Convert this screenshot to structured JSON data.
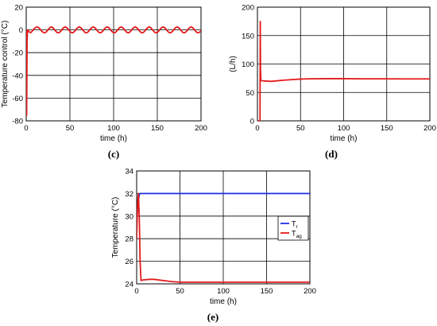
{
  "colors": {
    "red": "#e31a1c",
    "blue": "#1f2fe0",
    "axis": "#000000",
    "grid": "#000000",
    "background": "#ffffff"
  },
  "chart_data": [
    {
      "panel": "(c)",
      "type": "line",
      "xlabel": "time (h)",
      "ylabel": "Temperature control (°C)",
      "xlim": [
        0,
        200
      ],
      "ylim": [
        -80,
        20
      ],
      "xticks": [
        0,
        50,
        100,
        150,
        200
      ],
      "yticks": [
        -80,
        -60,
        -40,
        -20,
        0,
        20
      ],
      "grid": true,
      "series": [
        {
          "color": "red",
          "x": [
            0,
            0.5,
            1,
            1.5,
            2,
            3,
            5,
            7,
            9,
            11,
            13,
            15,
            17,
            19,
            21,
            23,
            25,
            27,
            29,
            31,
            33,
            35,
            37,
            39,
            41,
            43,
            45,
            47,
            49,
            51,
            53,
            55,
            57,
            59,
            61,
            63,
            65,
            67,
            69,
            71,
            73,
            75,
            77,
            79,
            81,
            83,
            85,
            87,
            89,
            91,
            93,
            95,
            97,
            99,
            101,
            103,
            105,
            107,
            109,
            111,
            113,
            115,
            117,
            119,
            121,
            123,
            125,
            127,
            129,
            131,
            133,
            135,
            137,
            139,
            141,
            143,
            145,
            147,
            149,
            151,
            153,
            155,
            157,
            159,
            161,
            163,
            165,
            167,
            169,
            171,
            173,
            175,
            177,
            179,
            181,
            183,
            185,
            187,
            189,
            191,
            193,
            195,
            197,
            199,
            200
          ],
          "y": [
            0,
            -75,
            -10,
            -1,
            0,
            -1.5,
            -2.5,
            -1,
            1,
            2.3,
            2.5,
            1.5,
            -0.5,
            -2,
            -2.6,
            -1.8,
            0.2,
            2,
            2.6,
            1.6,
            -0.4,
            -2.1,
            -2.6,
            -1.6,
            0.4,
            2.1,
            2.6,
            1.6,
            -0.4,
            -2.1,
            -2.6,
            -1.6,
            0.4,
            2.1,
            2.6,
            1.6,
            -0.4,
            -2.1,
            -2.6,
            -1.6,
            0.4,
            2.1,
            2.6,
            1.6,
            -0.4,
            -2.1,
            -2.6,
            -1.6,
            0.4,
            2.1,
            2.6,
            1.6,
            -0.4,
            -2.1,
            -2.6,
            -1.6,
            0.4,
            2.1,
            2.6,
            1.6,
            -0.4,
            -2.1,
            -2.6,
            -1.6,
            0.4,
            2.1,
            2.6,
            1.6,
            -0.4,
            -2.1,
            -2.6,
            -1.6,
            0.4,
            2.1,
            2.6,
            1.6,
            -0.4,
            -2.1,
            -2.6,
            -1.6,
            0.4,
            2.1,
            2.6,
            1.6,
            -0.4,
            -2.1,
            -2.6,
            -1.6,
            0.4,
            2.1,
            2.6,
            1.6,
            -0.4,
            -2.1,
            -2.6,
            -1.6,
            0.4,
            2.1,
            2.6,
            1.6,
            -0.4,
            -2.1,
            -2.6,
            -1.6,
            -1
          ]
        }
      ]
    },
    {
      "panel": "(d)",
      "type": "line",
      "xlabel": "time (h)",
      "ylabel": "(L/h)",
      "xlim": [
        0,
        200
      ],
      "ylim": [
        0,
        200
      ],
      "xticks": [
        0,
        50,
        100,
        150,
        200
      ],
      "yticks": [
        0,
        50,
        100,
        150,
        200
      ],
      "grid": true,
      "series": [
        {
          "color": "red",
          "x": [
            0,
            2.9,
            3,
            3.3,
            3.6,
            4,
            6,
            10,
            15,
            20,
            30,
            40,
            50,
            60,
            80,
            100,
            120,
            150,
            170,
            200
          ],
          "y": [
            0,
            0,
            0,
            175,
            90,
            71,
            70.5,
            70,
            69.5,
            70,
            71.5,
            72.5,
            73.5,
            74,
            74.2,
            74.2,
            74,
            74,
            73.8,
            73.8
          ]
        }
      ]
    },
    {
      "panel": "(e)",
      "type": "line",
      "xlabel": "time (h)",
      "ylabel": "Temperature (°C)",
      "xlim": [
        0,
        200
      ],
      "ylim": [
        24,
        34
      ],
      "xticks": [
        0,
        50,
        100,
        150,
        200
      ],
      "yticks": [
        24,
        26,
        28,
        30,
        32,
        34
      ],
      "grid": true,
      "legend": {
        "position": "right",
        "entries": [
          {
            "label": "T",
            "sub": "r",
            "color": "blue"
          },
          {
            "label": "T",
            "sub": "ag",
            "color": "red"
          }
        ]
      },
      "series": [
        {
          "color": "blue",
          "x": [
            0,
            1,
            2,
            3,
            4,
            6,
            10,
            50,
            100,
            150,
            200
          ],
          "y": [
            29.5,
            30.6,
            31.4,
            31.9,
            32.0,
            32.0,
            32.0,
            32.0,
            32.0,
            32.0,
            32.0
          ]
        },
        {
          "color": "red",
          "x": [
            0,
            0.5,
            1,
            1.5,
            2,
            3,
            4,
            5,
            8,
            15,
            20,
            30,
            40,
            50,
            75,
            100,
            150,
            200
          ],
          "y": [
            28.0,
            29.5,
            30.8,
            31.6,
            32.0,
            30.0,
            26.0,
            24.3,
            24.35,
            24.4,
            24.4,
            24.3,
            24.2,
            24.15,
            24.15,
            24.15,
            24.15,
            24.15
          ]
        }
      ]
    }
  ]
}
